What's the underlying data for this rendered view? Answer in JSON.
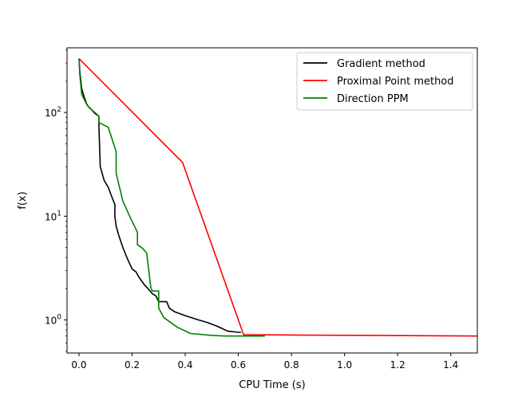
{
  "chart_data": {
    "type": "line",
    "title": "",
    "xlabel": "CPU Time (s)",
    "ylabel": "f(x)",
    "xlim": [
      -0.045,
      1.5
    ],
    "ylim": [
      0.48,
      420
    ],
    "yscale": "log",
    "grid": false,
    "legend_position": "top-right",
    "x_ticks": [
      {
        "v": 0.0,
        "label": "0.0"
      },
      {
        "v": 0.2,
        "label": "0.2"
      },
      {
        "v": 0.4,
        "label": "0.4"
      },
      {
        "v": 0.6,
        "label": "0.6"
      },
      {
        "v": 0.8,
        "label": "0.8"
      },
      {
        "v": 1.0,
        "label": "1.0"
      },
      {
        "v": 1.2,
        "label": "1.2"
      },
      {
        "v": 1.4,
        "label": "1.4"
      }
    ],
    "y_ticks": [
      {
        "v": 1,
        "base": "10",
        "exp": "0"
      },
      {
        "v": 10,
        "base": "10",
        "exp": "1"
      },
      {
        "v": 100,
        "base": "10",
        "exp": "2"
      }
    ],
    "series": [
      {
        "name": "Gradient method",
        "color": "#000000",
        "points": [
          [
            0.0,
            330
          ],
          [
            0.003,
            250
          ],
          [
            0.01,
            170
          ],
          [
            0.02,
            140
          ],
          [
            0.03,
            118
          ],
          [
            0.045,
            108
          ],
          [
            0.06,
            98
          ],
          [
            0.075,
            92
          ],
          [
            0.075,
            75
          ],
          [
            0.08,
            30
          ],
          [
            0.095,
            22
          ],
          [
            0.11,
            19
          ],
          [
            0.125,
            15
          ],
          [
            0.135,
            13
          ],
          [
            0.135,
            10
          ],
          [
            0.14,
            8
          ],
          [
            0.15,
            6.5
          ],
          [
            0.165,
            5
          ],
          [
            0.18,
            4
          ],
          [
            0.2,
            3.1
          ],
          [
            0.215,
            2.9
          ],
          [
            0.225,
            2.6
          ],
          [
            0.245,
            2.2
          ],
          [
            0.26,
            2.0
          ],
          [
            0.275,
            1.8
          ],
          [
            0.29,
            1.7
          ],
          [
            0.3,
            1.5
          ],
          [
            0.33,
            1.5
          ],
          [
            0.34,
            1.3
          ],
          [
            0.36,
            1.2
          ],
          [
            0.4,
            1.1
          ],
          [
            0.45,
            1.0
          ],
          [
            0.48,
            0.95
          ],
          [
            0.52,
            0.87
          ],
          [
            0.56,
            0.78
          ],
          [
            0.6,
            0.76
          ],
          [
            0.61,
            0.76
          ]
        ]
      },
      {
        "name": "Proximal Point method",
        "color": "#ff0000",
        "points": [
          [
            0.0,
            330
          ],
          [
            0.39,
            33
          ],
          [
            0.62,
            0.72
          ],
          [
            1.5,
            0.7
          ]
        ]
      },
      {
        "name": "Direction PPM",
        "color": "#008000",
        "points": [
          [
            0.0,
            330
          ],
          [
            0.003,
            230
          ],
          [
            0.01,
            150
          ],
          [
            0.025,
            125
          ],
          [
            0.04,
            110
          ],
          [
            0.06,
            100
          ],
          [
            0.075,
            92
          ],
          [
            0.075,
            80
          ],
          [
            0.11,
            72
          ],
          [
            0.14,
            42
          ],
          [
            0.14,
            26
          ],
          [
            0.165,
            14
          ],
          [
            0.195,
            9.5
          ],
          [
            0.22,
            7
          ],
          [
            0.22,
            5.3
          ],
          [
            0.24,
            4.9
          ],
          [
            0.255,
            4.4
          ],
          [
            0.27,
            2.1
          ],
          [
            0.275,
            1.9
          ],
          [
            0.3,
            1.9
          ],
          [
            0.3,
            1.3
          ],
          [
            0.32,
            1.05
          ],
          [
            0.37,
            0.85
          ],
          [
            0.42,
            0.74
          ],
          [
            0.5,
            0.71
          ],
          [
            0.55,
            0.7
          ],
          [
            0.7,
            0.7
          ]
        ]
      }
    ]
  }
}
